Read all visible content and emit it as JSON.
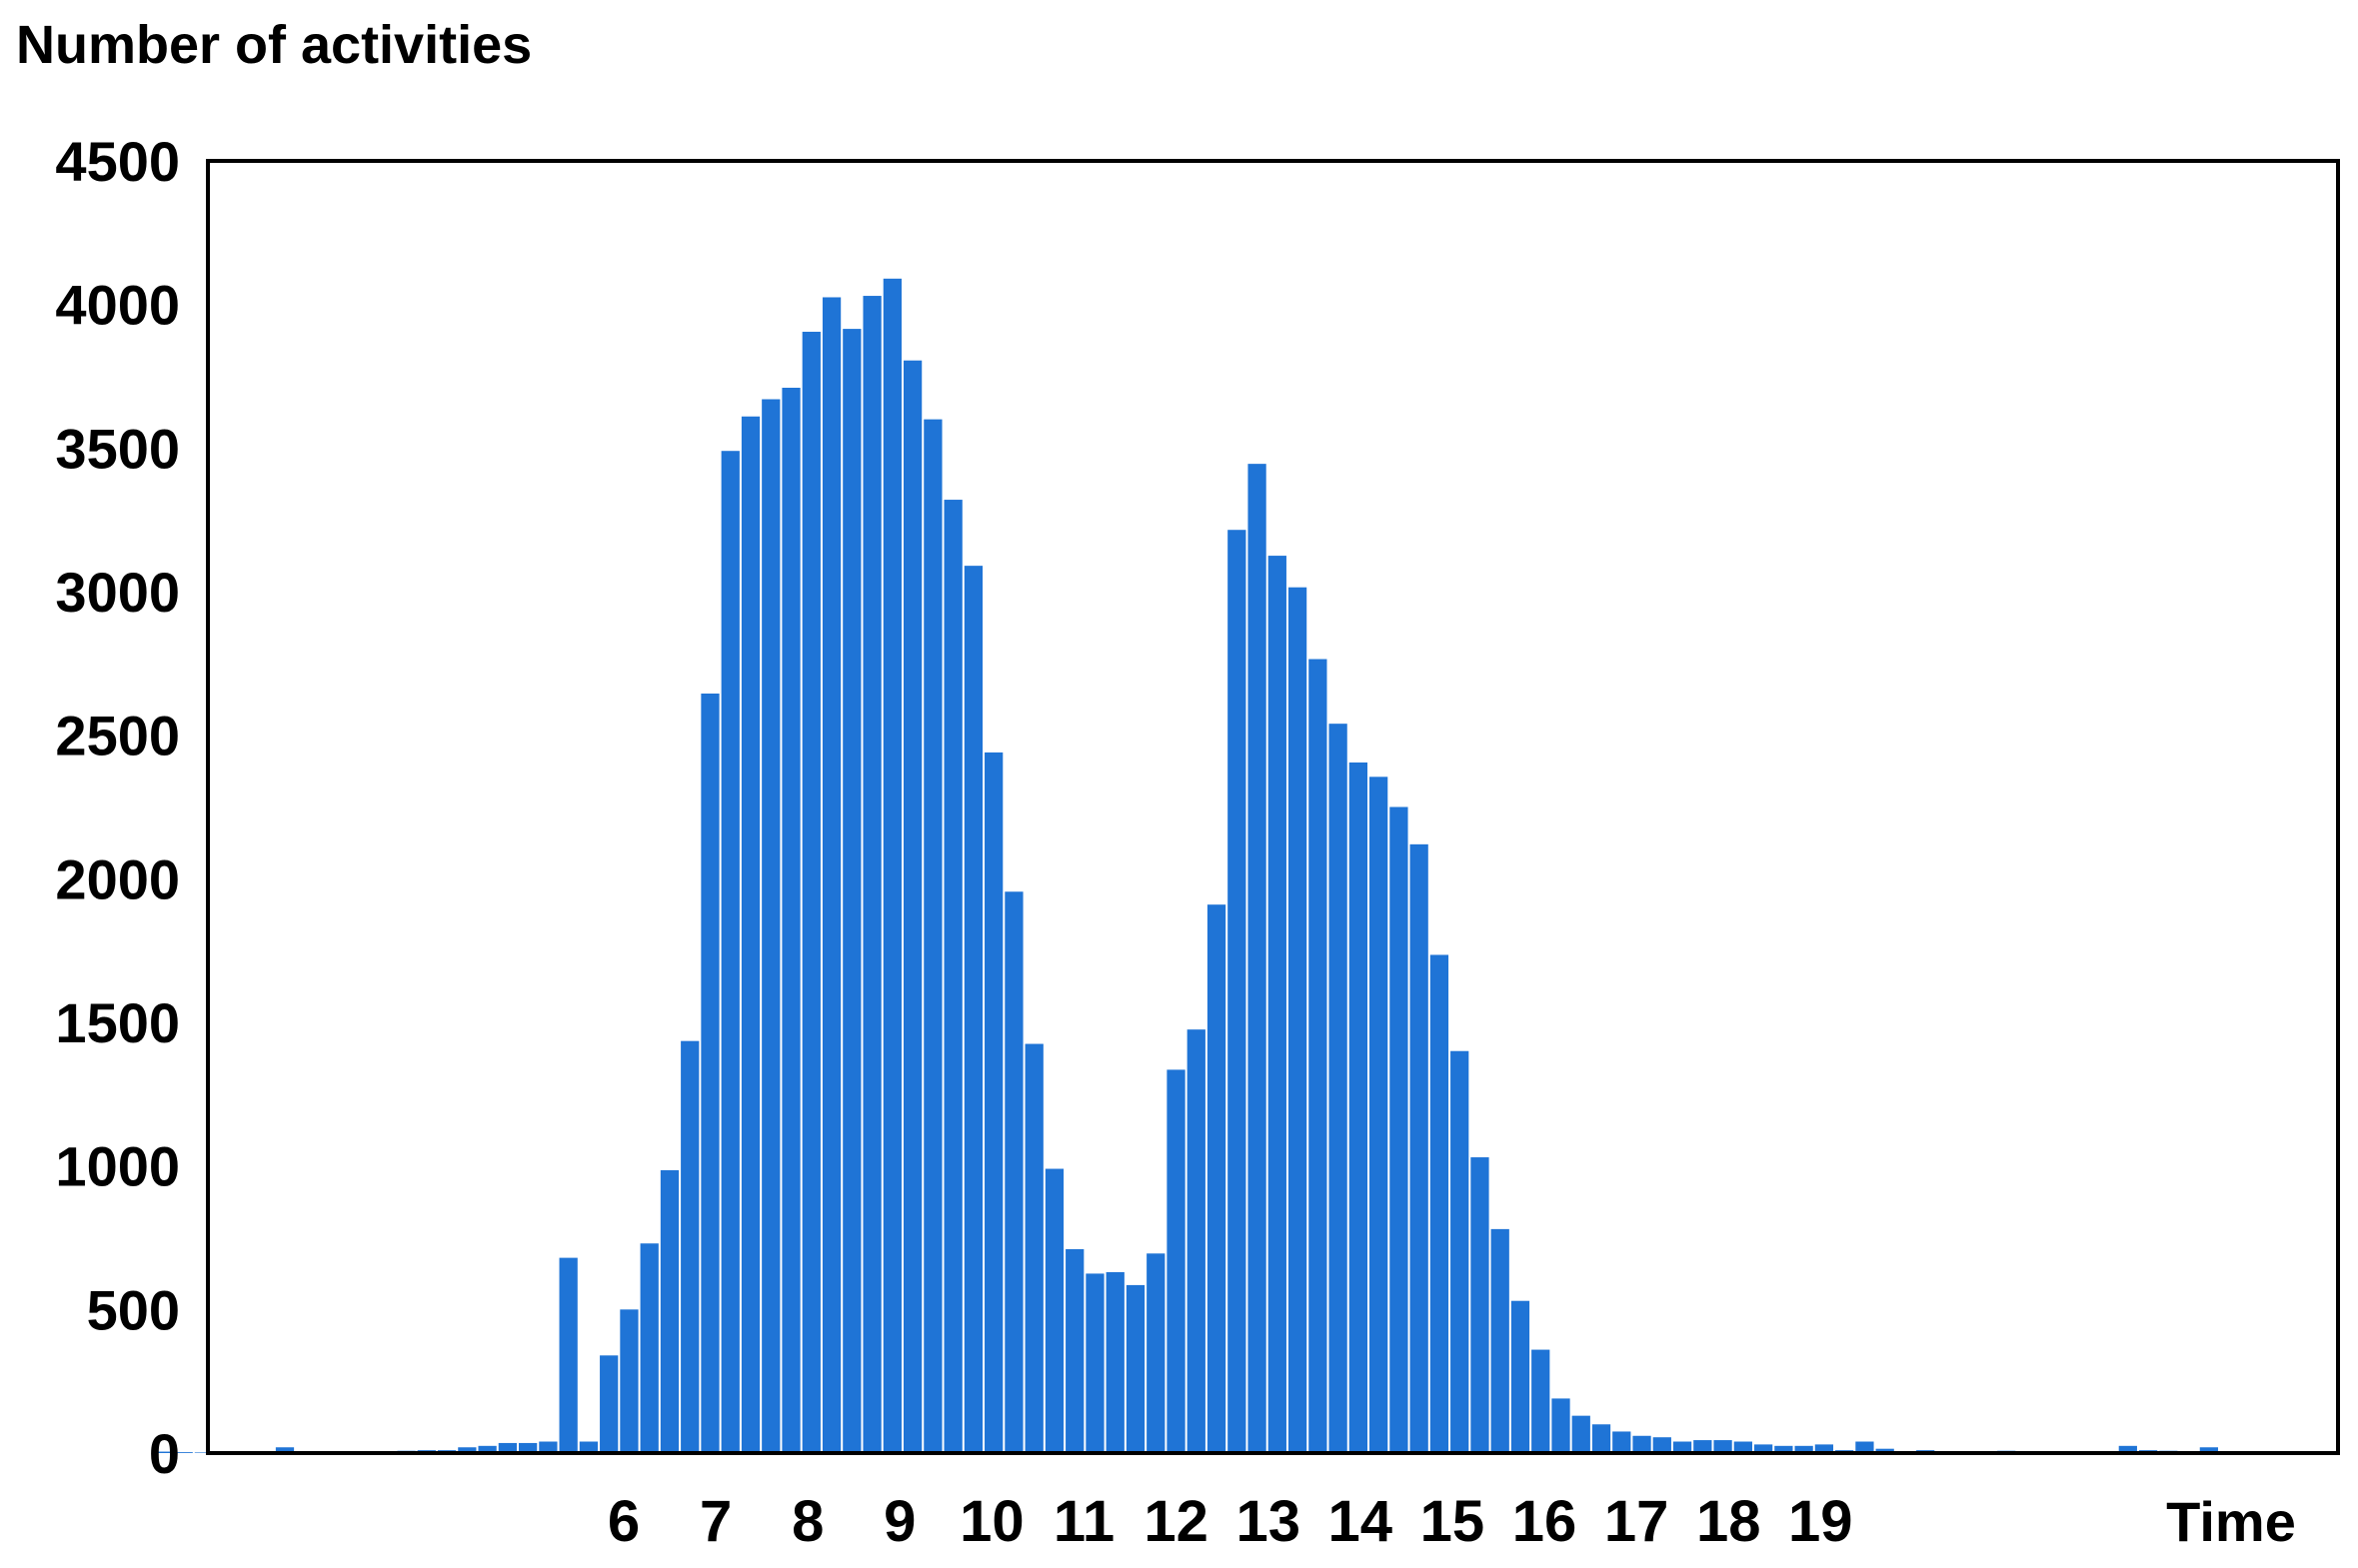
{
  "chart_data": {
    "type": "bar",
    "ylabel": "Number of activities",
    "xlabel": "Time",
    "ylim": [
      0,
      4500
    ],
    "yticks": [
      0,
      500,
      1000,
      1500,
      2000,
      2500,
      3000,
      3500,
      4000,
      4500
    ],
    "xticks": [
      "6",
      "7",
      "8",
      "9",
      "10",
      "11",
      "12",
      "13",
      "14",
      "15",
      "16",
      "17",
      "18",
      "19"
    ],
    "x_start_hour": 0.9,
    "bin_hours": 0.22,
    "grid": false,
    "bar_color": "#1f74d6",
    "values": [
      5,
      3,
      2,
      3,
      2,
      0,
      20,
      5,
      5,
      2,
      5,
      5,
      8,
      10,
      10,
      20,
      25,
      35,
      35,
      40,
      680,
      40,
      340,
      500,
      730,
      985,
      1435,
      2645,
      3490,
      3610,
      3670,
      3710,
      3905,
      4025,
      3915,
      4030,
      4090,
      3805,
      3600,
      3320,
      3090,
      2440,
      1955,
      1425,
      990,
      710,
      625,
      630,
      585,
      695,
      1335,
      1475,
      1910,
      3215,
      3445,
      3125,
      3015,
      2765,
      2540,
      2405,
      2355,
      2250,
      2120,
      1735,
      1400,
      1030,
      780,
      530,
      360,
      190,
      130,
      100,
      75,
      60,
      55,
      40,
      45,
      45,
      40,
      30,
      25,
      25,
      30,
      10,
      40,
      15,
      5,
      10,
      5,
      5,
      5,
      8,
      5,
      5,
      5,
      5,
      5,
      25,
      10,
      8,
      5,
      20
    ]
  }
}
